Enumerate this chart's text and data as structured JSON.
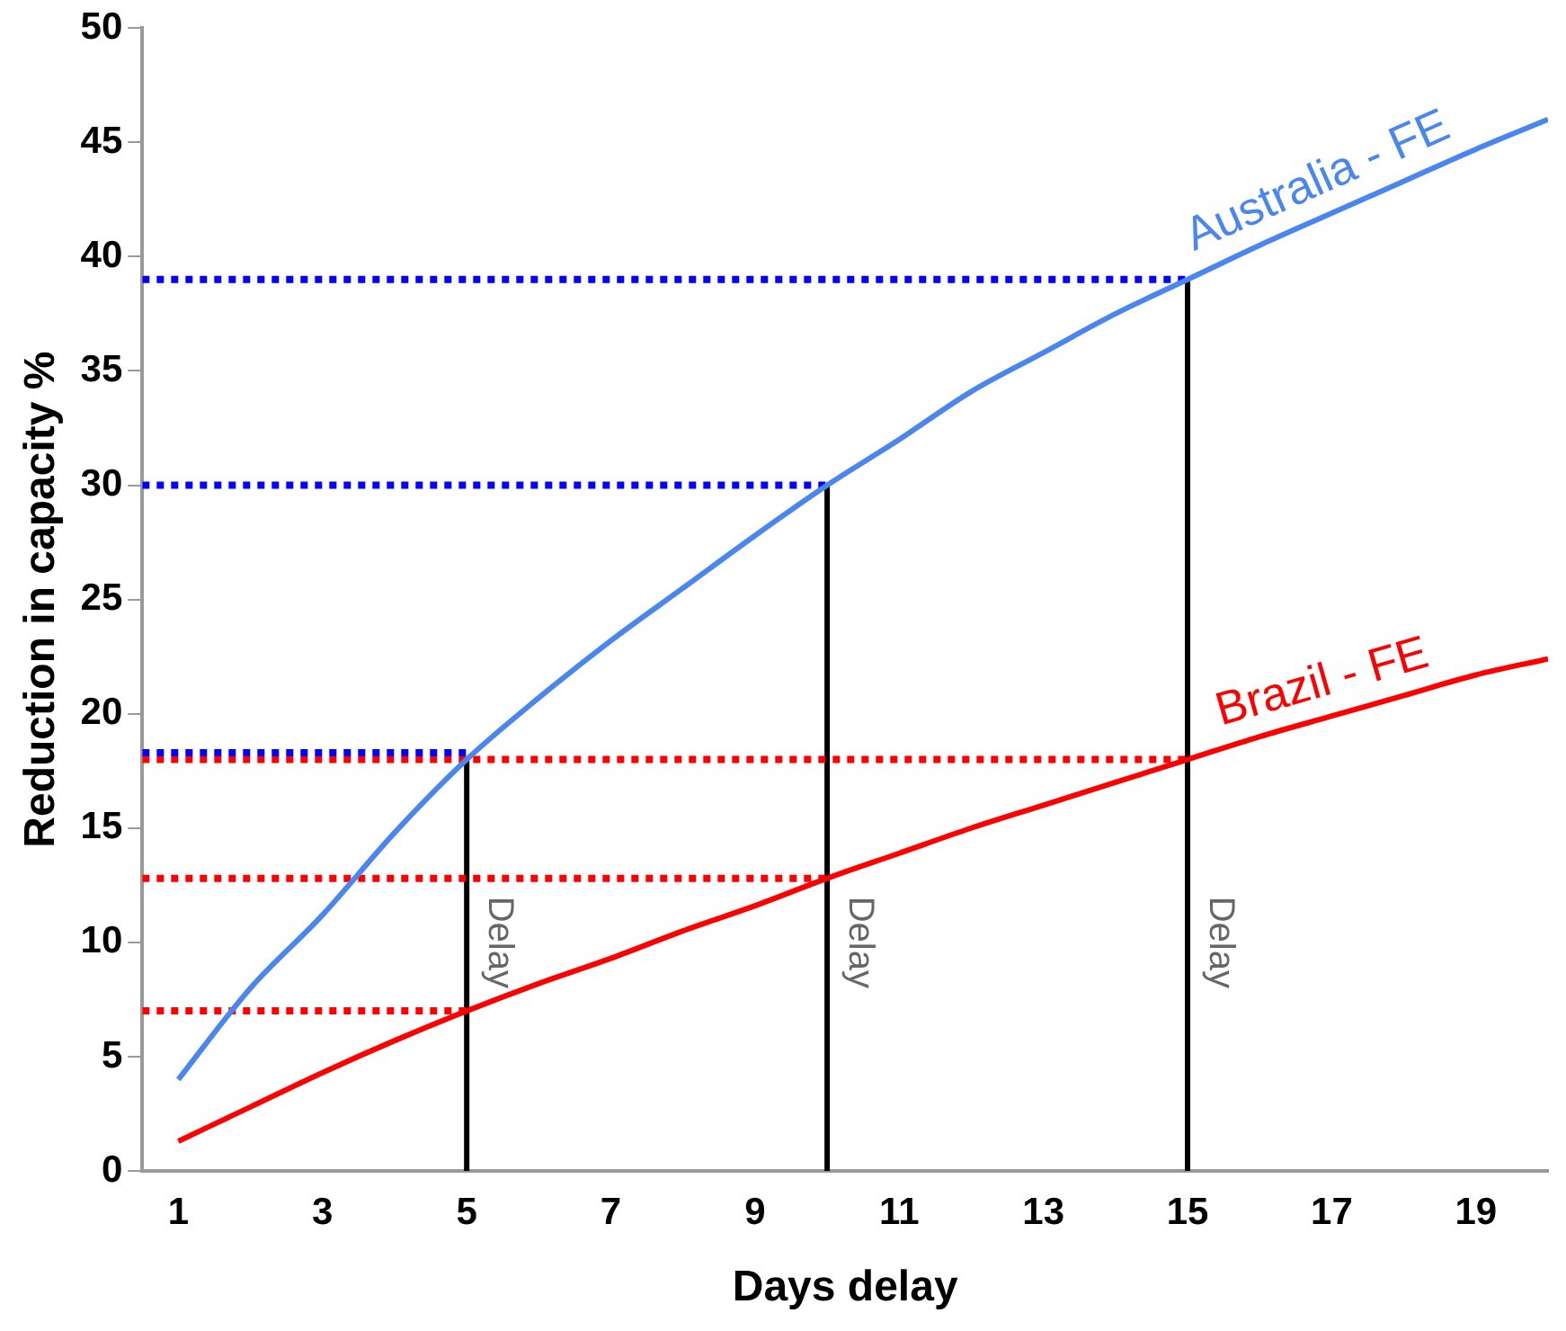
{
  "chart_data": {
    "type": "line",
    "xlabel": "Days delay",
    "ylabel": "Reduction in capacity %",
    "x": [
      1,
      2,
      3,
      4,
      5,
      6,
      7,
      8,
      9,
      10,
      11,
      12,
      13,
      14,
      15,
      16,
      17,
      18,
      19,
      20
    ],
    "series": [
      {
        "name": "Australia - FE",
        "color": "#4a86f0",
        "values": [
          4,
          8,
          11.2,
          14.8,
          18,
          20.7,
          23.2,
          25.5,
          27.8,
          30,
          32,
          34.1,
          35.8,
          37.5,
          39,
          40.5,
          41.9,
          43.3,
          44.7,
          46
        ]
      },
      {
        "name": "Brazil - FE",
        "color": "#ff0000",
        "values": [
          1.3,
          2.8,
          4.3,
          5.7,
          7,
          8.2,
          9.3,
          10.5,
          11.6,
          12.8,
          13.9,
          15,
          16,
          17,
          18,
          19,
          19.9,
          20.8,
          21.7,
          22.4
        ]
      },
      {
        "color": "#0000ff",
        "line_style": "dotted",
        "x": [
          0.5,
          5
        ],
        "values": [
          18.3,
          18.3
        ]
      },
      {
        "color": "#0000ff",
        "line_style": "dotted",
        "x": [
          0.5,
          10
        ],
        "values": [
          30,
          30
        ]
      },
      {
        "color": "#0000ff",
        "line_style": "dotted",
        "x": [
          0.5,
          15
        ],
        "values": [
          39,
          39
        ]
      },
      {
        "color": "#ff0000",
        "line_style": "dotted",
        "x": [
          0.5,
          15
        ],
        "values": [
          18,
          18
        ]
      },
      {
        "color": "#ff0000",
        "line_style": "dotted",
        "x": [
          0.5,
          10
        ],
        "values": [
          12.8,
          12.8
        ]
      },
      {
        "color": "#ff0000",
        "line_style": "dotted",
        "x": [
          0.5,
          5
        ],
        "values": [
          7,
          7
        ]
      },
      {
        "color": "#000000",
        "x": [
          5,
          5
        ],
        "values": [
          0,
          18
        ]
      },
      {
        "color": "#000000",
        "x": [
          10,
          10
        ],
        "values": [
          0,
          30
        ]
      },
      {
        "color": "#000000",
        "x": [
          15,
          15
        ],
        "values": [
          0,
          39
        ]
      }
    ],
    "annotations": [
      {
        "text": "Delay",
        "x": 5,
        "y": 10
      },
      {
        "text": "Delay",
        "x": 10,
        "y": 10
      },
      {
        "text": "Delay",
        "x": 15,
        "y": 10
      }
    ],
    "xlim": [
      0.5,
      20
    ],
    "xticks": [
      1,
      3,
      5,
      7,
      9,
      11,
      13,
      15,
      17,
      19
    ],
    "ylim": [
      0,
      50
    ],
    "yticks": [
      0,
      5,
      10,
      15,
      20,
      25,
      30,
      35,
      40,
      45,
      50
    ],
    "marker": "none",
    "legend": false,
    "grid": false
  }
}
